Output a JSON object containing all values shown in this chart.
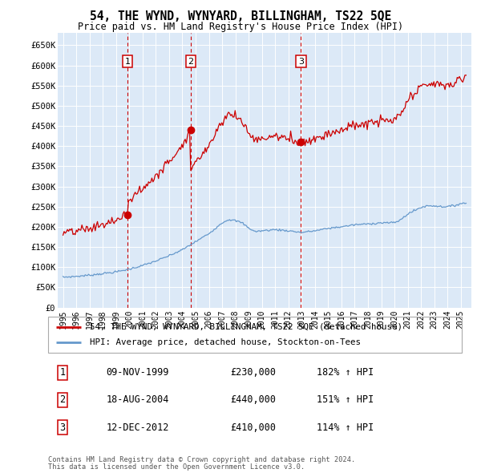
{
  "title": "54, THE WYND, WYNYARD, BILLINGHAM, TS22 5QE",
  "subtitle": "Price paid vs. HM Land Registry's House Price Index (HPI)",
  "plot_bg_color": "#dce9f7",
  "ylim": [
    0,
    680000
  ],
  "yticks": [
    0,
    50000,
    100000,
    150000,
    200000,
    250000,
    300000,
    350000,
    400000,
    450000,
    500000,
    550000,
    600000,
    650000
  ],
  "ytick_labels": [
    "£0",
    "£50K",
    "£100K",
    "£150K",
    "£200K",
    "£250K",
    "£300K",
    "£350K",
    "£400K",
    "£450K",
    "£500K",
    "£550K",
    "£600K",
    "£650K"
  ],
  "sale_dates": [
    1999.86,
    2004.63,
    2012.95
  ],
  "sale_prices": [
    230000,
    440000,
    410000
  ],
  "sale_labels": [
    "1",
    "2",
    "3"
  ],
  "legend_red": "54, THE WYND, WYNYARD, BILLINGHAM, TS22 5QE (detached house)",
  "legend_blue": "HPI: Average price, detached house, Stockton-on-Tees",
  "table_rows": [
    [
      "1",
      "09-NOV-1999",
      "£230,000",
      "182% ↑ HPI"
    ],
    [
      "2",
      "18-AUG-2004",
      "£440,000",
      "151% ↑ HPI"
    ],
    [
      "3",
      "12-DEC-2012",
      "£410,000",
      "114% ↑ HPI"
    ]
  ],
  "footnote1": "Contains HM Land Registry data © Crown copyright and database right 2024.",
  "footnote2": "This data is licensed under the Open Government Licence v3.0.",
  "red_color": "#cc0000",
  "blue_color": "#6699cc",
  "hpi_knots_x": [
    1995,
    1996,
    1997,
    1998,
    1999,
    2000,
    2001,
    2002,
    2003,
    2004,
    2005,
    2006,
    2007,
    2007.5,
    2008,
    2008.5,
    2009,
    2009.5,
    2010,
    2011,
    2012,
    2012.5,
    2013,
    2014,
    2015,
    2016,
    2017,
    2018,
    2019,
    2020,
    2020.5,
    2021,
    2021.5,
    2022,
    2022.5,
    2023,
    2023.5,
    2024,
    2024.5,
    2025
  ],
  "hpi_knots_y": [
    75000,
    77000,
    80000,
    84000,
    88000,
    95000,
    104000,
    115000,
    128000,
    143000,
    163000,
    183000,
    210000,
    218000,
    215000,
    210000,
    197000,
    188000,
    190000,
    193000,
    190000,
    188000,
    186000,
    190000,
    196000,
    200000,
    205000,
    207000,
    210000,
    210000,
    218000,
    232000,
    240000,
    248000,
    252000,
    252000,
    250000,
    250000,
    252000,
    258000
  ]
}
